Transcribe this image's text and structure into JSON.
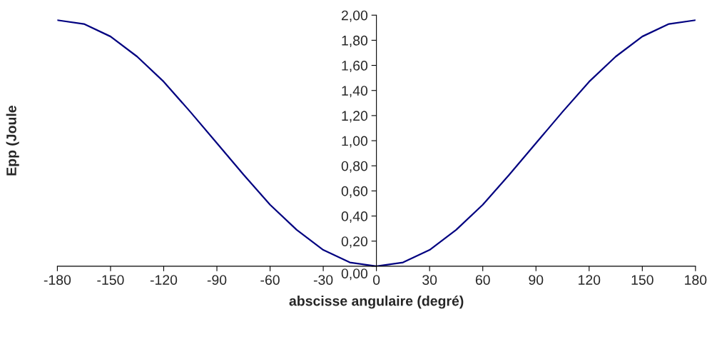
{
  "chart_data": {
    "type": "line",
    "xlabel": "abscisse angulaire (degré)",
    "ylabel": "Epp (Joule",
    "x": [
      -180,
      -165,
      -150,
      -135,
      -120,
      -105,
      -90,
      -75,
      -60,
      -45,
      -30,
      -15,
      0,
      15,
      30,
      45,
      60,
      75,
      90,
      105,
      120,
      135,
      150,
      165,
      180
    ],
    "series": [
      {
        "color": "#000080",
        "values": [
          1.96,
          1.93,
          1.83,
          1.67,
          1.47,
          1.23,
          0.98,
          0.73,
          0.49,
          0.29,
          0.13,
          0.03,
          0.0,
          0.03,
          0.13,
          0.29,
          0.49,
          0.73,
          0.98,
          1.23,
          1.47,
          1.67,
          1.83,
          1.93,
          1.96
        ]
      }
    ],
    "xlim": [
      -180,
      180
    ],
    "xticks": [
      -180,
      -150,
      -120,
      -90,
      -60,
      -30,
      0,
      30,
      60,
      90,
      120,
      150,
      180
    ],
    "ylim": [
      0,
      2
    ],
    "yticks": [
      {
        "value": 0,
        "label": "0,00"
      },
      {
        "value": 0.2,
        "label": "0,20"
      },
      {
        "value": 0.4,
        "label": "0,40"
      },
      {
        "value": 0.6,
        "label": "0,60"
      },
      {
        "value": 0.8,
        "label": "0,80"
      },
      {
        "value": 1.0,
        "label": "1,00"
      },
      {
        "value": 1.2,
        "label": "1,20"
      },
      {
        "value": 1.4,
        "label": "1,40"
      },
      {
        "value": 1.6,
        "label": "1,60"
      },
      {
        "value": 1.8,
        "label": "1,80"
      },
      {
        "value": 2.0,
        "label": "2,00"
      }
    ],
    "grid": false,
    "legend": false,
    "marker": "none",
    "line_style": "solid"
  }
}
